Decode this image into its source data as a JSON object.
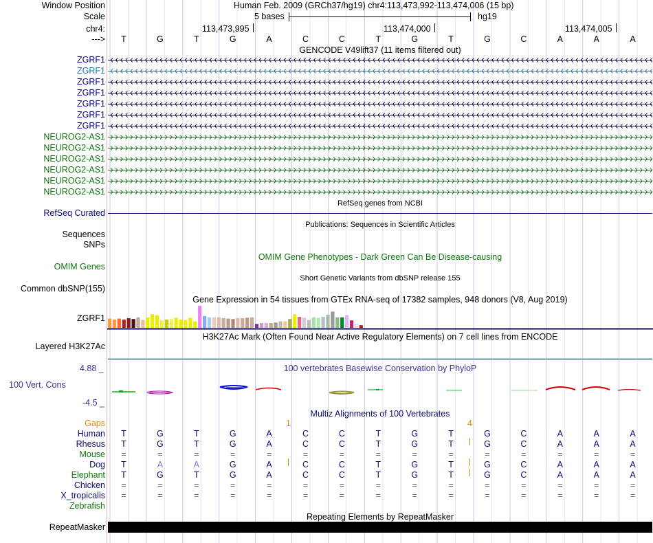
{
  "header": {
    "window_position_label": "Window Position",
    "window_position": "Human Feb. 2009 (GRCh37/hg19)   chr4:113,473,992-113,474,006 (15 bp)",
    "scale_label": "Scale",
    "scale_text": "5 bases",
    "assembly": "hg19",
    "chrom_label": "chr4:",
    "strand_label": "--->",
    "coords": [
      "113,473,995",
      "113,474,000",
      "113,474,005"
    ],
    "bases": [
      "T",
      "G",
      "T",
      "G",
      "A",
      "C",
      "C",
      "T",
      "G",
      "T",
      "G",
      "C",
      "A",
      "A",
      "A"
    ]
  },
  "gencode": {
    "title": "GENCODE V49lift37 (11 items filtered out)",
    "tracks": [
      {
        "label": "ZGRF1",
        "strand": "minus",
        "color": "#0c0c78"
      },
      {
        "label": "ZGRF1",
        "strand": "minus",
        "color": "#2277aa"
      },
      {
        "label": "ZGRF1",
        "strand": "minus",
        "color": "#0c0c78"
      },
      {
        "label": "ZGRF1",
        "strand": "minus",
        "color": "#0c0c78"
      },
      {
        "label": "ZGRF1",
        "strand": "minus",
        "color": "#0c0c78"
      },
      {
        "label": "ZGRF1",
        "strand": "minus",
        "color": "#0c0c78"
      },
      {
        "label": "ZGRF1",
        "strand": "minus",
        "color": "#0c0c78"
      },
      {
        "label": "NEUROG2-AS1",
        "strand": "plus",
        "color": "#10780e"
      },
      {
        "label": "NEUROG2-AS1",
        "strand": "plus",
        "color": "#10780e"
      },
      {
        "label": "NEUROG2-AS1",
        "strand": "plus",
        "color": "#10780e"
      },
      {
        "label": "NEUROG2-AS1",
        "strand": "plus",
        "color": "#10780e"
      },
      {
        "label": "NEUROG2-AS1",
        "strand": "plus",
        "color": "#10780e"
      },
      {
        "label": "NEUROG2-AS1",
        "strand": "plus",
        "color": "#10780e"
      }
    ]
  },
  "refseq": {
    "title": "RefSeq genes from NCBI",
    "label": "RefSeq Curated"
  },
  "publications": {
    "title": "Publications: Sequences in Scientific Articles",
    "label1": "Sequences",
    "label2": "SNPs"
  },
  "omim": {
    "title": "OMIM Gene Phenotypes - Dark Green Can Be Disease-causing",
    "label": "OMIM Genes"
  },
  "dbsnp": {
    "title": "Short Genetic Variants from dbSNP release 155",
    "label": "Common dbSNP(155)"
  },
  "gtex": {
    "title": "Gene Expression in 54 tissues from GTEx RNA-seq of 17382 samples, 948 donors (V8, Aug 2019)",
    "label": "ZGRF1",
    "bars": [
      {
        "h": 0.42,
        "c": "#ff9a3c"
      },
      {
        "h": 0.38,
        "c": "#ff9a3c"
      },
      {
        "h": 0.42,
        "c": "#ff6b35"
      },
      {
        "h": 0.38,
        "c": "#b22222"
      },
      {
        "h": 0.44,
        "c": "#8b1a1a"
      },
      {
        "h": 0.4,
        "c": "#4b0f0f"
      },
      {
        "h": 0.48,
        "c": "#c8a898"
      },
      {
        "h": 0.36,
        "c": "#eebb99"
      },
      {
        "h": 0.48,
        "c": "#eeee00"
      },
      {
        "h": 0.62,
        "c": "#eeee00"
      },
      {
        "h": 0.58,
        "c": "#eeee00"
      },
      {
        "h": 0.34,
        "c": "#eeee44"
      },
      {
        "h": 0.38,
        "c": "#cccc00"
      },
      {
        "h": 0.4,
        "c": "#eeee66"
      },
      {
        "h": 0.46,
        "c": "#eeee00"
      },
      {
        "h": 0.38,
        "c": "#eeee00"
      },
      {
        "h": 0.36,
        "c": "#eeee00"
      },
      {
        "h": 0.46,
        "c": "#eeee00"
      },
      {
        "h": 0.3,
        "c": "#eeee00"
      },
      {
        "h": 1.0,
        "c": "#ee82ee"
      },
      {
        "h": 0.54,
        "c": "#88aaee"
      },
      {
        "h": 0.48,
        "c": "#aaccee"
      },
      {
        "h": 0.48,
        "c": "#eeccbb"
      },
      {
        "h": 0.48,
        "c": "#ddbbaa"
      },
      {
        "h": 0.44,
        "c": "#ccaa99"
      },
      {
        "h": 0.42,
        "c": "#bb9988"
      },
      {
        "h": 0.4,
        "c": "#aa8877"
      },
      {
        "h": 0.44,
        "c": "#ddbbaa"
      },
      {
        "h": 0.44,
        "c": "#ccaa99"
      },
      {
        "h": 0.46,
        "c": "#bb9988"
      },
      {
        "h": 0.48,
        "c": "#ccaa99"
      },
      {
        "h": 0.18,
        "c": "#7733aa"
      },
      {
        "h": 0.22,
        "c": "#cc99cc"
      },
      {
        "h": 0.22,
        "c": "#ddaadd"
      },
      {
        "h": 0.22,
        "c": "#bbaa88"
      },
      {
        "h": 0.24,
        "c": "#aa9988"
      },
      {
        "h": 0.3,
        "c": "#ccbbaa"
      },
      {
        "h": 0.3,
        "c": "#eecc99"
      },
      {
        "h": 0.4,
        "c": "#aaaa55"
      },
      {
        "h": 0.62,
        "c": "#eeee00"
      },
      {
        "h": 0.5,
        "c": "#ee6688"
      },
      {
        "h": 0.46,
        "c": "#ccccdd"
      },
      {
        "h": 0.36,
        "c": "#bbbbbb"
      },
      {
        "h": 0.48,
        "c": "#aaddaa"
      },
      {
        "h": 0.46,
        "c": "#aaeeaa"
      },
      {
        "h": 0.5,
        "c": "#bbbbcc"
      },
      {
        "h": 0.6,
        "c": "#aabbaa"
      },
      {
        "h": 0.74,
        "c": "#999999"
      },
      {
        "h": 0.48,
        "c": "#88bb88"
      },
      {
        "h": 0.48,
        "c": "#008833"
      },
      {
        "h": 0.58,
        "c": "#ddbbee"
      },
      {
        "h": 0.34,
        "c": "#cc2266"
      },
      {
        "h": 0.18,
        "c": "#ffccee"
      },
      {
        "h": 0.12,
        "c": "#aa2222"
      }
    ]
  },
  "h3k27ac": {
    "title": "H3K27Ac Mark (Often Found Near Active Regulatory Elements) on 7 cell lines from ENCODE",
    "label": "Layered H3K27Ac"
  },
  "phylop": {
    "title": "100 vertebrates Basewise Conservation by PhyloP",
    "label": "100 Vert. Cons",
    "max": "4.88 _",
    "min": "-4.5 _"
  },
  "multiz": {
    "title": "Multiz Alignments of 100 Vertebrates",
    "gaps_label": "Gaps",
    "gap_counts": [
      "1",
      "4"
    ],
    "species": [
      {
        "name": "Human",
        "color": "#0c0c78",
        "seq": [
          "T",
          "G",
          "T",
          "G",
          "A",
          "C",
          "C",
          "T",
          "G",
          "T",
          "G",
          "C",
          "A",
          "A",
          "A"
        ]
      },
      {
        "name": "Rhesus",
        "color": "#0c0c78",
        "seq": [
          "T",
          "G",
          "T",
          "G",
          "A",
          "C",
          "C",
          "T",
          "G",
          "T",
          "G",
          "C",
          "A",
          "A",
          "A"
        ]
      },
      {
        "name": "Mouse",
        "color": "#10780e",
        "seq": [
          "=",
          "=",
          "=",
          "=",
          "=",
          "=",
          "=",
          "=",
          "=",
          "=",
          "=",
          "=",
          "=",
          "=",
          "="
        ]
      },
      {
        "name": "Dog",
        "color": "#0c0c78",
        "seq": [
          "T",
          "A",
          "A",
          "G",
          "A",
          "C",
          "C",
          "T",
          "G",
          "T",
          "G",
          "C",
          "A",
          "A",
          "A"
        ]
      },
      {
        "name": "Elephant",
        "color": "#10780e",
        "seq": [
          "T",
          "G",
          "T",
          "G",
          "A",
          "C",
          "C",
          "T",
          "G",
          "T",
          "G",
          "C",
          "A",
          "A",
          "A"
        ]
      },
      {
        "name": "Chicken",
        "color": "#0c0c78",
        "seq": [
          "=",
          "=",
          "=",
          "=",
          "=",
          "=",
          "=",
          "=",
          "=",
          "=",
          "=",
          "=",
          "=",
          "=",
          "="
        ]
      },
      {
        "name": "X_tropicalis",
        "color": "#0c0c78",
        "seq": [
          "=",
          "=",
          "=",
          "=",
          "=",
          "=",
          "=",
          "=",
          "=",
          "=",
          "=",
          "=",
          "=",
          "=",
          "="
        ]
      },
      {
        "name": "Zebrafish",
        "color": "#10780e",
        "seq": []
      }
    ]
  },
  "repeatmasker": {
    "title": "Repeating Elements by RepeatMasker",
    "label": "RepeatMasker"
  }
}
